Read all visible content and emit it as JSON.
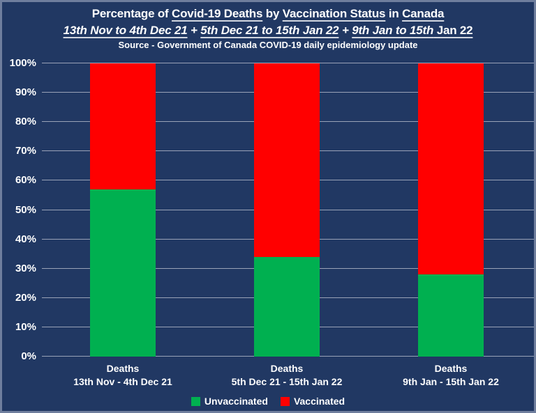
{
  "frame": {
    "background": "#213863",
    "border_color": "#6f7e9d",
    "text_color": "#ffffff",
    "gridline_color": "#9aa3b8"
  },
  "header": {
    "title_parts": {
      "p1": "Percentage of ",
      "u1": "Covid-19 Deaths",
      "p2": " by ",
      "u2": "Vaccination Status",
      "p3": " in ",
      "u3": "Canada"
    },
    "subtitle_parts": {
      "r1": "13th Nov to 4th Dec 21",
      "sep1": " + ",
      "r2": "5th Dec 21 to 15th Jan 22",
      "sep2": " + ",
      "r3a": "9th Jan to 15th",
      "r3b": " Jan 22"
    },
    "source": "Source - Government of Canada COVID-19 daily epidemiology update"
  },
  "chart_data": {
    "type": "bar",
    "stacked": true,
    "orientation": "vertical",
    "title": "Percentage of Covid-19 Deaths by Vaccination Status in Canada",
    "subtitle": "13th Nov to 4th Dec 21 + 5th Dec 21 to 15th Jan 22 + 9th Jan to 15th Jan 22",
    "source": "Source - Government of Canada COVID-19 daily epidemiology update",
    "categories": [
      {
        "line1": "Deaths",
        "line2": "13th Nov - 4th Dec 21"
      },
      {
        "line1": "Deaths",
        "line2": "5th Dec 21 - 15th Jan 22"
      },
      {
        "line1": "Deaths",
        "line2": "9th Jan - 15th Jan 22"
      }
    ],
    "series": [
      {
        "name": "Unvaccinated",
        "color": "#00b050",
        "values": [
          57,
          34,
          28
        ]
      },
      {
        "name": "Vaccinated",
        "color": "#ff0000",
        "values": [
          43,
          66,
          72
        ]
      }
    ],
    "ylim": [
      0,
      100
    ],
    "yticks": [
      "0%",
      "10%",
      "20%",
      "30%",
      "40%",
      "50%",
      "60%",
      "70%",
      "80%",
      "90%",
      "100%"
    ],
    "grid": true,
    "legend_position": "bottom"
  }
}
